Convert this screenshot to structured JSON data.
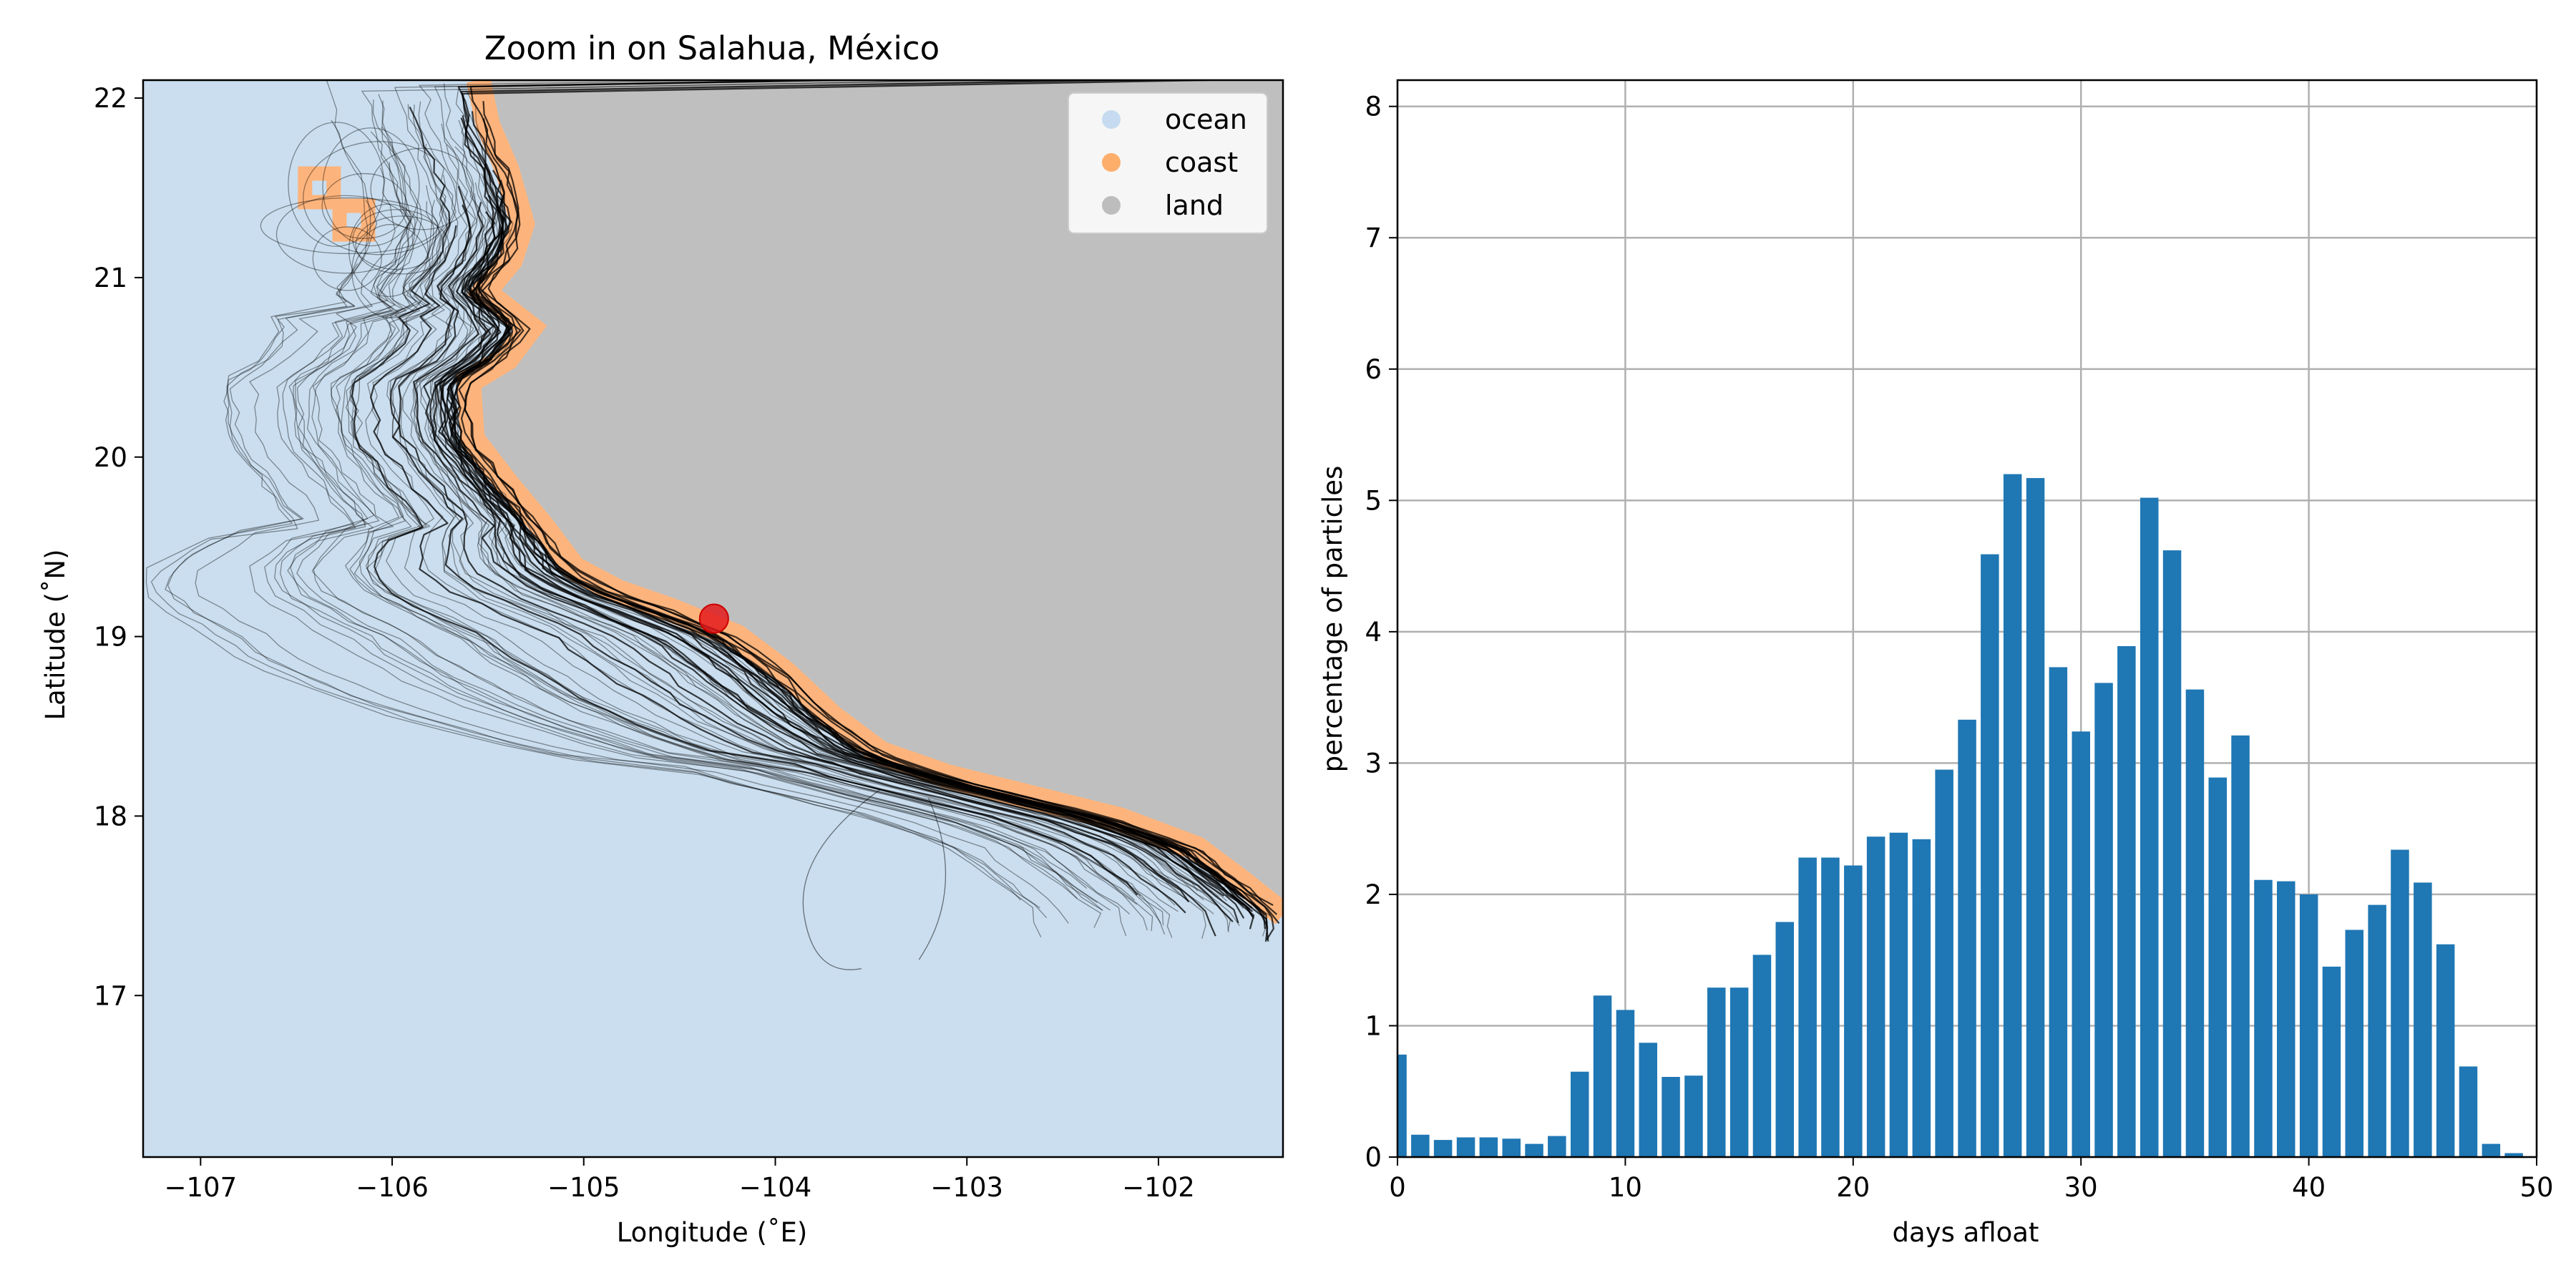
{
  "chart_data": [
    {
      "type": "map",
      "title": "Zoom in on Salahua, México",
      "xlabel": "Longitude (˚E)",
      "ylabel": "Latitude (˚N)",
      "xlim": [
        -107.3,
        -101.35
      ],
      "ylim": [
        16.1,
        22.1
      ],
      "xticks": [
        -107,
        -106,
        -105,
        -104,
        -103,
        -102
      ],
      "xtick_labels": [
        "−107",
        "−106",
        "−105",
        "−104",
        "−103",
        "−102"
      ],
      "yticks": [
        17,
        18,
        19,
        20,
        21,
        22
      ],
      "ytick_labels": [
        "17",
        "18",
        "19",
        "20",
        "21",
        "22"
      ],
      "legend": {
        "position": "top-right",
        "entries": [
          {
            "label": "ocean",
            "color": "#c6dbef"
          },
          {
            "label": "coast",
            "color": "#fdae6b"
          },
          {
            "label": "land",
            "color": "#bdbdbd"
          }
        ]
      },
      "marker": {
        "label": "Salahua",
        "lon": -104.32,
        "lat": 19.1,
        "color": "#e31a1c"
      },
      "colors": {
        "ocean": "#cadeef",
        "land": "#bfbfbf",
        "coast": "#fdb47c",
        "trajectory": "#000000"
      },
      "coastline": [
        [
          -105.55,
          22.1
        ],
        [
          -105.5,
          21.85
        ],
        [
          -105.4,
          21.6
        ],
        [
          -105.32,
          21.3
        ],
        [
          -105.38,
          21.1
        ],
        [
          -105.52,
          20.92
        ],
        [
          -105.28,
          20.72
        ],
        [
          -105.4,
          20.55
        ],
        [
          -105.6,
          20.42
        ],
        [
          -105.58,
          20.1
        ],
        [
          -105.4,
          19.85
        ],
        [
          -105.22,
          19.62
        ],
        [
          -105.05,
          19.38
        ],
        [
          -104.82,
          19.25
        ],
        [
          -104.55,
          19.15
        ],
        [
          -104.2,
          19.0
        ],
        [
          -103.95,
          18.8
        ],
        [
          -103.7,
          18.55
        ],
        [
          -103.45,
          18.35
        ],
        [
          -103.1,
          18.22
        ],
        [
          -102.65,
          18.1
        ],
        [
          -102.2,
          17.98
        ],
        [
          -101.8,
          17.82
        ],
        [
          -101.55,
          17.62
        ],
        [
          -101.35,
          17.45
        ]
      ],
      "islands": [
        {
          "lon": -106.38,
          "lat": 21.5
        },
        {
          "lon": -106.2,
          "lat": 21.32
        }
      ]
    },
    {
      "type": "bar",
      "title": "",
      "xlabel": "days afloat",
      "ylabel": "percentage of particles",
      "xlim": [
        0,
        50
      ],
      "ylim": [
        0,
        8.2
      ],
      "grid": true,
      "xticks": [
        0,
        10,
        20,
        30,
        40,
        50
      ],
      "yticks": [
        0,
        1,
        2,
        3,
        4,
        5,
        6,
        7,
        8
      ],
      "color": "#1f77b4",
      "x": [
        0,
        1,
        2,
        3,
        4,
        5,
        6,
        7,
        8,
        9,
        10,
        11,
        12,
        13,
        14,
        15,
        16,
        17,
        18,
        19,
        20,
        21,
        22,
        23,
        24,
        25,
        26,
        27,
        28,
        29,
        30,
        31,
        32,
        33,
        34,
        35,
        36,
        37,
        38,
        39,
        40,
        41,
        42,
        43,
        44,
        45,
        46,
        47,
        48,
        49
      ],
      "values": [
        0.78,
        0.17,
        0.13,
        0.15,
        0.15,
        0.14,
        0.1,
        0.16,
        0.65,
        1.23,
        1.12,
        0.87,
        0.61,
        0.62,
        1.29,
        1.29,
        1.54,
        1.79,
        2.28,
        2.28,
        2.22,
        2.44,
        2.47,
        2.42,
        2.95,
        3.33,
        4.59,
        5.2,
        5.17,
        3.73,
        3.24,
        3.61,
        3.89,
        5.02,
        4.62,
        3.56,
        2.89,
        3.21,
        2.11,
        2.1,
        2.0,
        1.45,
        1.73,
        1.92,
        2.34,
        2.09,
        1.62,
        0.69,
        0.1,
        0.03
      ]
    }
  ]
}
